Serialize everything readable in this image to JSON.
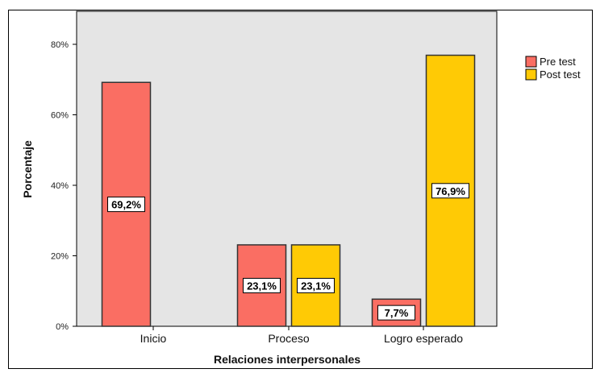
{
  "chart_data": {
    "type": "bar",
    "categories": [
      "Inicio",
      "Proceso",
      "Logro esperado"
    ],
    "series": [
      {
        "name": "Pre test",
        "values": [
          69.2,
          23.1,
          7.7
        ],
        "labels": [
          "69,2%",
          "23,1%",
          "7,7%"
        ],
        "color": "#FA6E63"
      },
      {
        "name": "Post test",
        "values": [
          0,
          23.1,
          76.9
        ],
        "labels": [
          "",
          "23,1%",
          "76,9%"
        ],
        "color": "#FFCA05"
      }
    ],
    "xlabel": "Relaciones interpersonales",
    "ylabel": "Porcentaje",
    "ylim": [
      0,
      80
    ],
    "yticks": [
      0,
      20,
      40,
      60,
      80
    ],
    "ytick_labels": [
      "0%",
      "20%",
      "40%",
      "60%",
      "80%"
    ],
    "plot_background": "#E5E5E5",
    "legend_position": "right"
  }
}
